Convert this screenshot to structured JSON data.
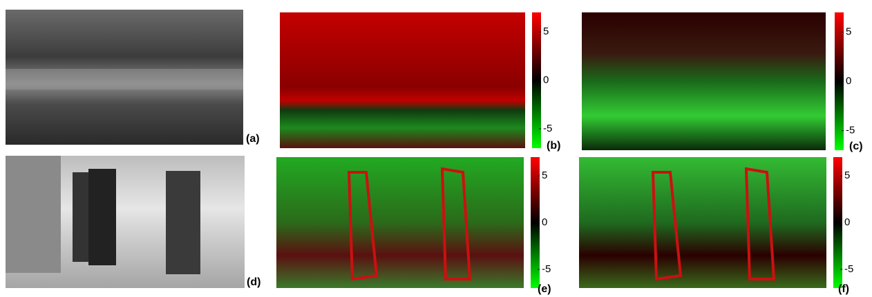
{
  "panels": [
    {
      "label": "(a)"
    },
    {
      "label": "(b)"
    },
    {
      "label": "(c)"
    },
    {
      "label": "(d)"
    },
    {
      "label": "(e)"
    },
    {
      "label": "(f)"
    }
  ],
  "colorbar": {
    "ylim": [
      -7,
      7
    ],
    "yticks": [
      5,
      0,
      -5
    ]
  }
}
